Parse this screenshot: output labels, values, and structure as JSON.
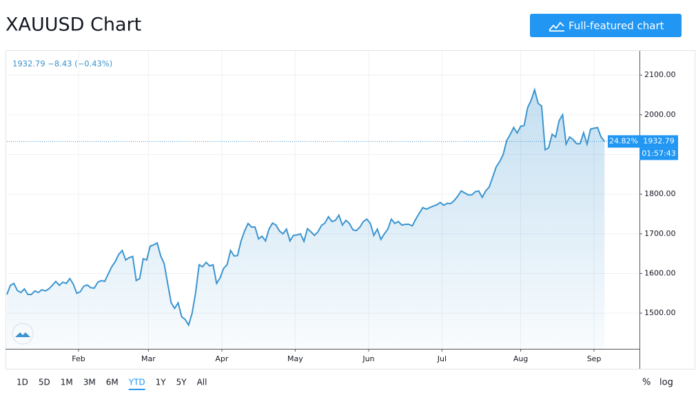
{
  "ui": {
    "header_title": "XAUUSD Chart",
    "button": "Full-featured chart",
    "legend": "1932.79 −8.43 (−0.43%)",
    "last_price_change": "24.82%",
    "last_price": "1932.79",
    "countdown": "01:57:43",
    "ranges": [
      "1D",
      "5D",
      "1M",
      "3M",
      "6M",
      "YTD",
      "1Y",
      "5Y",
      "All"
    ],
    "active_range": "YTD",
    "percent_toggle": "%",
    "log_toggle": "log"
  },
  "chart_data": {
    "type": "area",
    "color": "#3a94d0",
    "grid": true,
    "values": [
      1547,
      1570,
      1575,
      1557,
      1552,
      1561,
      1547,
      1547,
      1556,
      1552,
      1559,
      1556,
      1561,
      1570,
      1580,
      1570,
      1578,
      1575,
      1587,
      1573,
      1550,
      1554,
      1568,
      1571,
      1564,
      1563,
      1578,
      1582,
      1580,
      1599,
      1617,
      1630,
      1648,
      1658,
      1634,
      1640,
      1643,
      1582,
      1587,
      1637,
      1634,
      1669,
      1672,
      1677,
      1644,
      1625,
      1575,
      1526,
      1512,
      1526,
      1491,
      1484,
      1470,
      1500,
      1552,
      1622,
      1617,
      1628,
      1619,
      1622,
      1575,
      1589,
      1613,
      1622,
      1658,
      1644,
      1645,
      1682,
      1707,
      1726,
      1717,
      1717,
      1687,
      1694,
      1682,
      1712,
      1727,
      1722,
      1707,
      1700,
      1712,
      1682,
      1696,
      1697,
      1700,
      1681,
      1713,
      1705,
      1696,
      1705,
      1721,
      1727,
      1743,
      1731,
      1734,
      1747,
      1722,
      1734,
      1726,
      1710,
      1708,
      1717,
      1731,
      1737,
      1726,
      1696,
      1712,
      1686,
      1700,
      1712,
      1737,
      1726,
      1731,
      1722,
      1724,
      1724,
      1720,
      1737,
      1752,
      1766,
      1762,
      1766,
      1770,
      1773,
      1779,
      1772,
      1777,
      1776,
      1784,
      1795,
      1808,
      1803,
      1798,
      1798,
      1806,
      1808,
      1792,
      1808,
      1818,
      1843,
      1869,
      1882,
      1900,
      1935,
      1950,
      1968,
      1954,
      1971,
      1973,
      2018,
      2037,
      2063,
      2029,
      2022,
      1912,
      1917,
      1951,
      1944,
      1985,
      2000,
      1926,
      1944,
      1938,
      1927,
      1927,
      1955,
      1926,
      1964,
      1966,
      1968,
      1944,
      1932.79
    ],
    "xlim": [
      0,
      181
    ],
    "xticks": [
      {
        "value": 20.5,
        "label": "Feb"
      },
      {
        "value": 40.5,
        "label": "Mar"
      },
      {
        "value": 61.5,
        "label": "Apr"
      },
      {
        "value": 82.5,
        "label": "May"
      },
      {
        "value": 103.5,
        "label": "Jun"
      },
      {
        "value": 124.5,
        "label": "Jul"
      },
      {
        "value": 147,
        "label": "Aug"
      },
      {
        "value": 168,
        "label": "Sep"
      }
    ],
    "ylim": [
      1410,
      2161
    ],
    "yticks": [
      {
        "value": 1500,
        "label": "1500.00"
      },
      {
        "value": 1600,
        "label": "1600.00"
      },
      {
        "value": 1700,
        "label": "1700.00"
      },
      {
        "value": 1800,
        "label": "1800.00"
      },
      {
        "value": 1900,
        "label": "1900.00"
      },
      {
        "value": 2000,
        "label": "2000.00"
      },
      {
        "value": 2100,
        "label": "2100.00"
      }
    ]
  }
}
